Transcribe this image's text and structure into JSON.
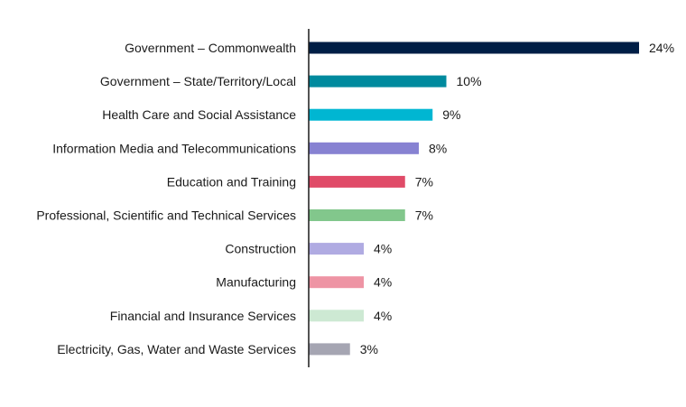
{
  "chart_data": {
    "type": "bar",
    "orientation": "horizontal",
    "title": "",
    "xlabel": "",
    "ylabel": "",
    "xlim": [
      0,
      24
    ],
    "grid": false,
    "value_suffix": "%",
    "categories": [
      "Government – Commonwealth",
      "Government – State/Territory/Local",
      "Health Care and Social Assistance",
      "Information Media and Telecommunications",
      "Education and Training",
      "Professional, Scientific and Technical Services",
      "Construction",
      "Manufacturing",
      "Financial and Insurance Services",
      "Electricity, Gas, Water and Waste Services"
    ],
    "values": [
      24,
      10,
      9,
      8,
      7,
      7,
      4,
      4,
      4,
      3
    ],
    "labels": [
      "24%",
      "10%",
      "9%",
      "8%",
      "7%",
      "7%",
      "4%",
      "4%",
      "4%",
      "3%"
    ],
    "colors": [
      "#001e46",
      "#008a9e",
      "#00b6d2",
      "#8782d2",
      "#e04b68",
      "#82c78c",
      "#b0abe2",
      "#ee94a4",
      "#cde9d3",
      "#a5a5b2"
    ]
  }
}
